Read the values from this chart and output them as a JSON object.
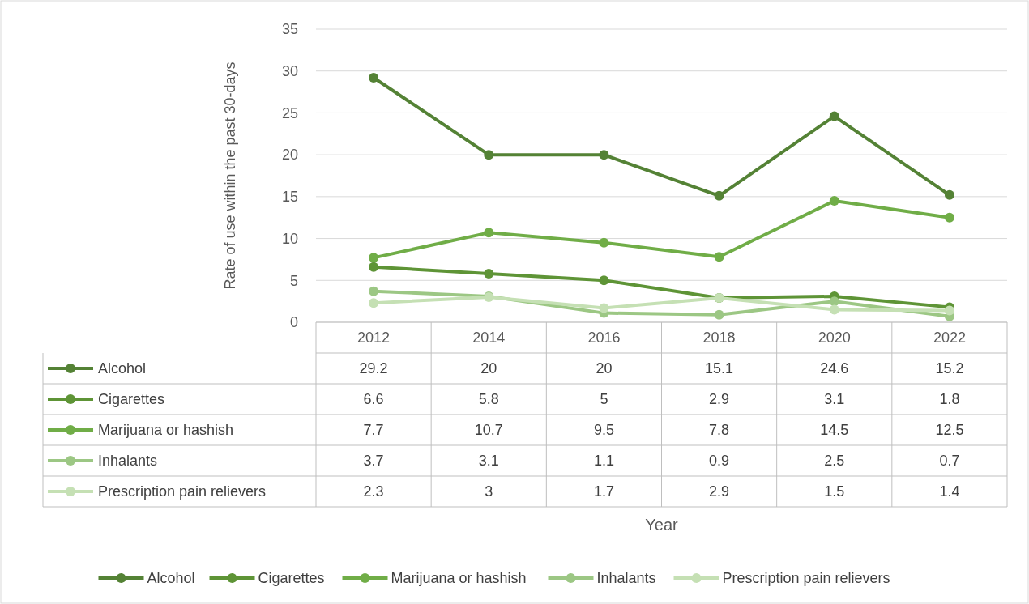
{
  "chart_data": {
    "type": "line",
    "annotations": [
      "Year"
    ],
    "ylabel": "Rate of use within the past 30-days",
    "categories": [
      "2012",
      "2014",
      "2016",
      "2018",
      "2020",
      "2022"
    ],
    "ylim": [
      0,
      35
    ],
    "yticks": [
      0,
      5,
      10,
      15,
      20,
      25,
      30,
      35
    ],
    "grid": "y",
    "legend": "bottom",
    "marker": "circle",
    "line_style": "solid",
    "data_labels": true,
    "series": [
      {
        "name": "Alcohol",
        "color": "#548235",
        "values": [
          29.2,
          20,
          20,
          15.1,
          24.6,
          15.2
        ]
      },
      {
        "name": "Cigarettes",
        "color": "#5e9436",
        "values": [
          6.6,
          5.8,
          5,
          2.9,
          3.1,
          1.8
        ]
      },
      {
        "name": "Marijuana or hashish",
        "color": "#70ad47",
        "values": [
          7.7,
          10.7,
          9.5,
          7.8,
          14.5,
          12.5
        ]
      },
      {
        "name": "Inhalants",
        "color": "#9cc784",
        "values": [
          3.7,
          3.1,
          1.1,
          0.9,
          2.5,
          0.7
        ]
      },
      {
        "name": "Prescription pain relievers",
        "color": "#c5e0b4",
        "values": [
          2.3,
          3,
          1.7,
          2.9,
          1.5,
          1.4
        ]
      }
    ]
  }
}
